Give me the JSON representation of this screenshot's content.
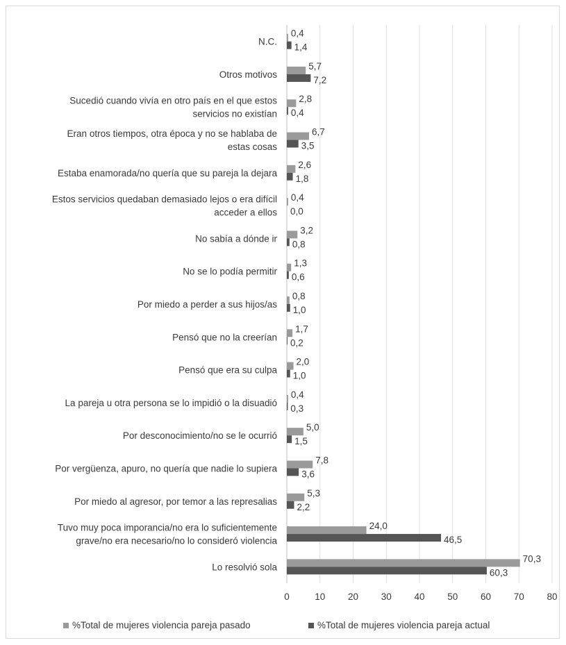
{
  "chart_data": {
    "type": "bar",
    "orientation": "horizontal",
    "categories": [
      "N.C.",
      "Otros motivos",
      "Sucedió cuando vivía en otro país en el que estos servicios no existían",
      "Eran otros tiempos, otra época y no se hablaba de estas cosas",
      "Estaba enamorada/no quería que su pareja la dejara",
      "Estos servicios quedaban demasiado lejos o era difícil acceder a ellos",
      "No sabía a dónde ir",
      "No se lo podía permitir",
      "Por miedo a perder a sus hijos/as",
      "Pensó que no la creerían",
      "Pensó que era su culpa",
      "La pareja u otra persona se lo impidió o la disuadió",
      "Por desconocimiento/no se le ocurrió",
      "Por vergüenza, apuro, no quería que nadie lo supiera",
      "Por miedo al agresor, por temor a las represalias",
      "Tuvo muy poca imporancia/no era lo suficientemente grave/no era necesario/no lo consideró violencia",
      "Lo resolvió sola"
    ],
    "category_lines": [
      [
        "N.C."
      ],
      [
        "Otros motivos"
      ],
      [
        "Sucedió cuando vivía en otro país en el que estos",
        "servicios no existían"
      ],
      [
        "Eran otros tiempos, otra época y no se hablaba de",
        "estas cosas"
      ],
      [
        "Estaba enamorada/no quería que su pareja la dejara"
      ],
      [
        "Estos servicios quedaban demasiado lejos o era difícil",
        "acceder a ellos"
      ],
      [
        "No sabía a dónde ir"
      ],
      [
        "No se lo podía permitir"
      ],
      [
        "Por miedo a perder a sus hijos/as"
      ],
      [
        "Pensó que no la creerían"
      ],
      [
        "Pensó que era su culpa"
      ],
      [
        "La pareja u otra persona se lo impidió o la disuadió"
      ],
      [
        "Por desconocimiento/no se le ocurrió"
      ],
      [
        "Por vergüenza, apuro, no quería que nadie lo supiera"
      ],
      [
        "Por miedo al agresor, por temor a las represalias"
      ],
      [
        "Tuvo muy poca imporancia/no era lo suficientemente",
        "grave/no era necesario/no lo consideró violencia"
      ],
      [
        "Lo resolvió sola"
      ]
    ],
    "series": [
      {
        "name": "%Total de mujeres violencia pareja pasado",
        "color": "#9a9a9a",
        "values": [
          0.4,
          5.7,
          2.8,
          6.7,
          2.6,
          0.4,
          3.2,
          1.3,
          0.8,
          1.7,
          2.0,
          0.4,
          5.0,
          7.8,
          5.3,
          24.0,
          70.3
        ],
        "labels": [
          "0,4",
          "5,7",
          "2,8",
          "6,7",
          "2,6",
          "0,4",
          "3,2",
          "1,3",
          "0,8",
          "1,7",
          "2,0",
          "0,4",
          "5,0",
          "7,8",
          "5,3",
          "24,0",
          "70,3"
        ]
      },
      {
        "name": "%Total de mujeres violencia pareja actual",
        "color": "#555555",
        "values": [
          1.4,
          7.2,
          0.4,
          3.5,
          1.8,
          0.0,
          0.8,
          0.6,
          1.0,
          0.2,
          1.0,
          0.3,
          1.5,
          3.6,
          2.2,
          46.5,
          60.3
        ],
        "labels": [
          "1,4",
          "7,2",
          "0,4",
          "3,5",
          "1,8",
          "0,0",
          "0,8",
          "0,6",
          "1,0",
          "0,2",
          "1,0",
          "0,3",
          "1,5",
          "3,6",
          "2,2",
          "46,5",
          "60,3"
        ]
      }
    ],
    "x_ticks": [
      0,
      10,
      20,
      30,
      40,
      50,
      60,
      70,
      80
    ],
    "xlim": [
      0,
      80
    ],
    "grid": true,
    "legend_position": "bottom",
    "title": "",
    "xlabel": "",
    "ylabel": ""
  }
}
